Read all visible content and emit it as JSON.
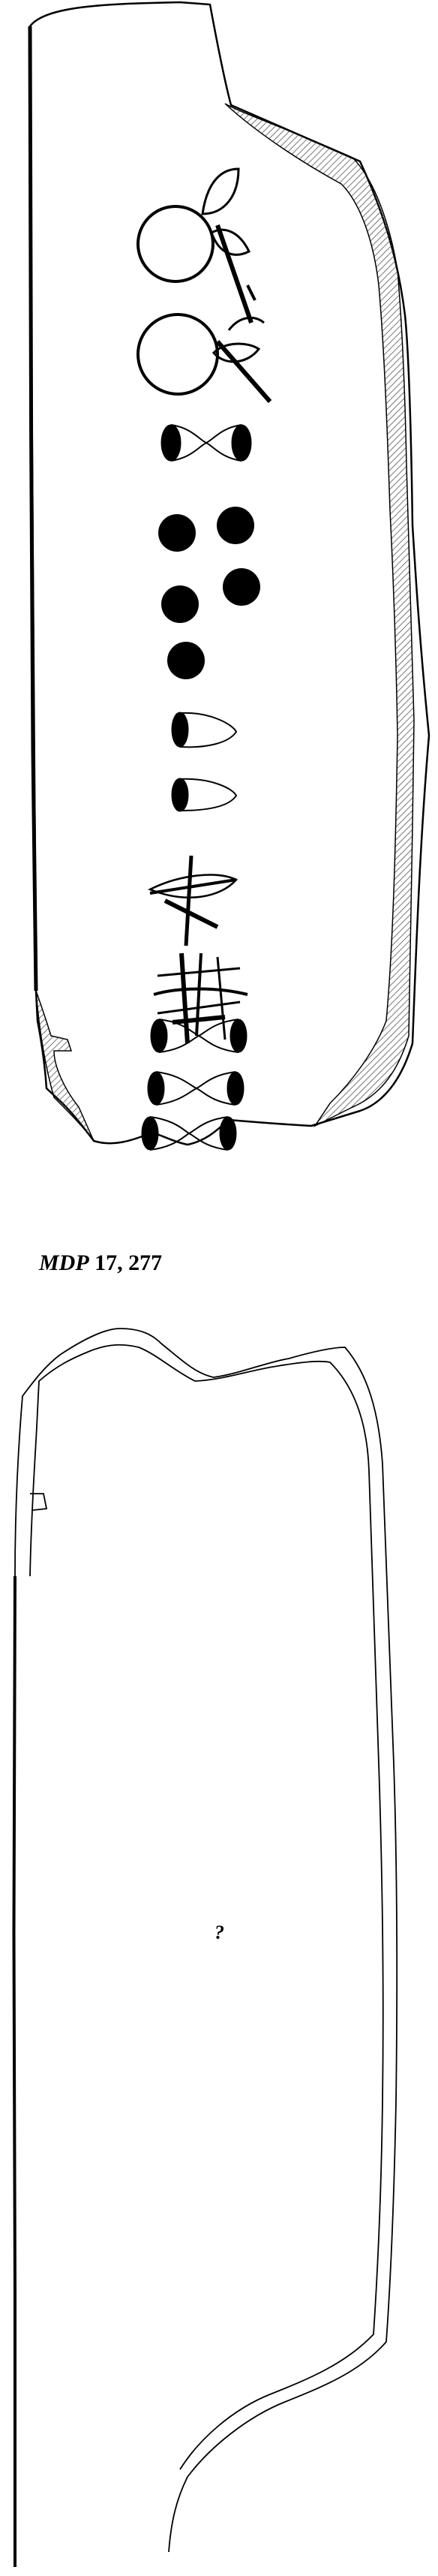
{
  "caption": {
    "series": "MDP",
    "number": "17, 277"
  },
  "reverse": {
    "note": "?"
  },
  "colors": {
    "ink": "#000000",
    "hatch": "#555555",
    "paper": "#ffffff"
  }
}
